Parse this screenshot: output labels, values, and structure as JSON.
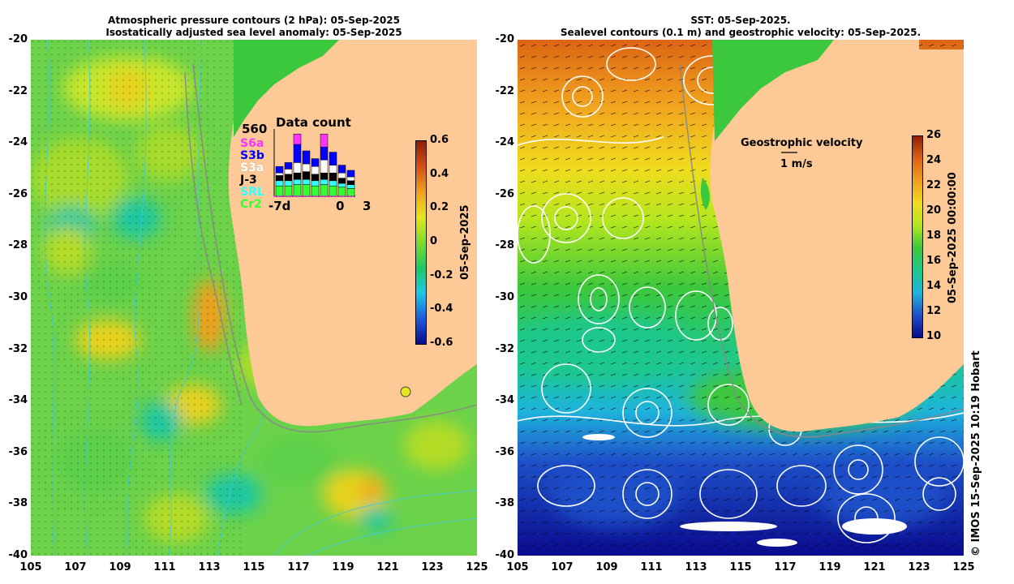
{
  "left_panel": {
    "title_line1": "Atmospheric pressure contours (2 hPa): 05-Sep-2025",
    "title_line2": "Isostatically adjusted sea level anomaly: 05-Sep-2025",
    "colorbar": {
      "ticks": [
        "0.6",
        "0.4",
        "0.2",
        "0",
        "-0.2",
        "-0.4",
        "-0.6"
      ],
      "label": "05-Sep-2025",
      "range": [
        -0.6,
        0.6
      ]
    },
    "inset": {
      "title": "Data count",
      "max_label": "560",
      "x_left": "-7d",
      "x_mid": "0",
      "x_right": "3",
      "legend": [
        {
          "label": "S6a",
          "color": "#ff33ff"
        },
        {
          "label": "S3b",
          "color": "#0000ff"
        },
        {
          "label": "S3a",
          "color": "#ffffff"
        },
        {
          "label": "J-3",
          "color": "#000000"
        },
        {
          "label": "SRL",
          "color": "#33ffff"
        },
        {
          "label": "Cr2",
          "color": "#33ff33"
        }
      ],
      "bars": [
        {
          "Cr2": 8,
          "SRL": 4,
          "J3": 4,
          "S3a": 2,
          "S3b": 5,
          "S6a": 0
        },
        {
          "Cr2": 8,
          "SRL": 4,
          "J3": 5,
          "S3a": 4,
          "S3b": 5,
          "S6a": 0
        },
        {
          "Cr2": 9,
          "SRL": 4,
          "J3": 5,
          "S3a": 8,
          "S3b": 14,
          "S6a": 8
        },
        {
          "Cr2": 9,
          "SRL": 4,
          "J3": 6,
          "S3a": 6,
          "S3b": 10,
          "S6a": 0
        },
        {
          "Cr2": 8,
          "SRL": 4,
          "J3": 5,
          "S3a": 6,
          "S3b": 6,
          "S6a": 0
        },
        {
          "Cr2": 9,
          "SRL": 4,
          "J3": 5,
          "S3a": 10,
          "S3b": 10,
          "S6a": 10
        },
        {
          "Cr2": 8,
          "SRL": 4,
          "J3": 6,
          "S3a": 6,
          "S3b": 10,
          "S6a": 0
        },
        {
          "Cr2": 7,
          "SRL": 3,
          "J3": 4,
          "S3a": 4,
          "S3b": 6,
          "S6a": 0
        },
        {
          "Cr2": 6,
          "SRL": 3,
          "J3": 3,
          "S3a": 3,
          "S3b": 5,
          "S6a": 0
        }
      ]
    }
  },
  "right_panel": {
    "title_line1": "SST: 05-Sep-2025.",
    "title_line2": "Sealevel contours (0.1 m) and geostrophic velocity: 05-Sep-2025.",
    "colorbar": {
      "ticks": [
        "26",
        "24",
        "22",
        "20",
        "18",
        "16",
        "14",
        "12",
        "10"
      ],
      "label": "05-Sep-2025 00:00:00",
      "range": [
        10,
        26
      ]
    },
    "geostrophic_label": "Geostrophic velocity",
    "scale_label": "1 m/s"
  },
  "axes": {
    "y_ticks": [
      "-20",
      "-22",
      "-24",
      "-26",
      "-28",
      "-30",
      "-32",
      "-34",
      "-36",
      "-38",
      "-40"
    ],
    "x_ticks": [
      "105",
      "107",
      "109",
      "111",
      "113",
      "115",
      "117",
      "119",
      "121",
      "123",
      "125"
    ]
  },
  "credit": "© IMOS 15-Sep-2025 10:19 Hobart",
  "colors": {
    "land": "#fdc996",
    "sla_ramp": [
      "#0a0a8c",
      "#1e5adc",
      "#1ec8e6",
      "#1ec864",
      "#7ddc28",
      "#e6e61e",
      "#f0a01e",
      "#d25014",
      "#8c1e0a"
    ],
    "sst_ramp": [
      "#0a0a8c",
      "#1e50c8",
      "#1eb4dc",
      "#1ec88c",
      "#3cc83c",
      "#b4e61e",
      "#f0dc1e",
      "#f0a01e",
      "#dc6414",
      "#8c1e0a"
    ]
  }
}
